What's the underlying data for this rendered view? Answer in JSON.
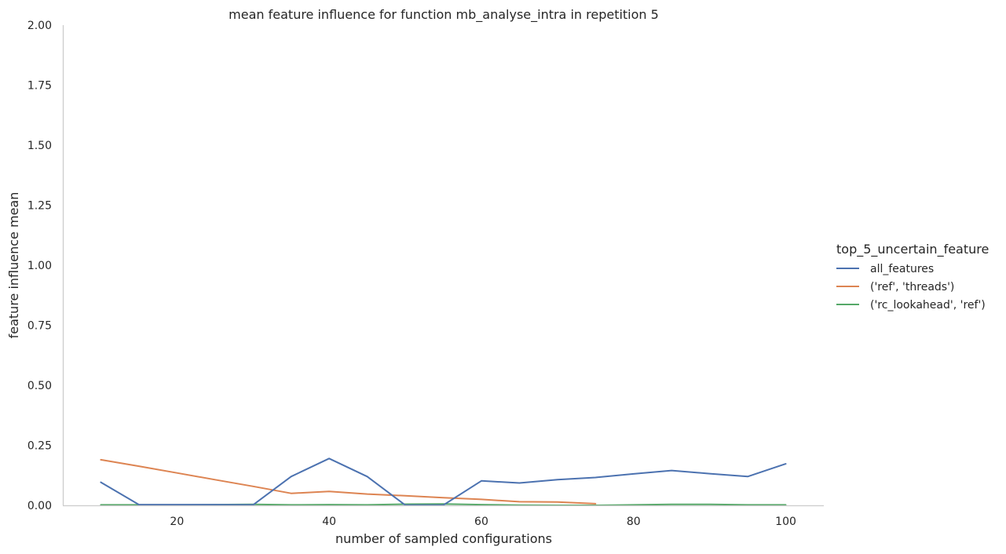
{
  "chart_data": {
    "type": "line",
    "title": "mean feature influence for function mb_analyse_intra in repetition 5",
    "xlabel": "number of sampled configurations",
    "ylabel": "feature influence mean",
    "xlim": [
      5,
      105
    ],
    "ylim": [
      0,
      2.0
    ],
    "xticks": [
      20,
      40,
      60,
      80,
      100
    ],
    "xtick_labels": [
      "20",
      "40",
      "60",
      "80",
      "100"
    ],
    "yticks": [
      0.0,
      0.25,
      0.5,
      0.75,
      1.0,
      1.25,
      1.5,
      1.75,
      2.0
    ],
    "ytick_labels": [
      "0.00",
      "0.25",
      "0.50",
      "0.75",
      "1.00",
      "1.25",
      "1.50",
      "1.75",
      "2.00"
    ],
    "grid": false,
    "legend_placement": "right",
    "legend_title": "top_5_uncertain_feature",
    "series": [
      {
        "name": "all_features",
        "color": "#4c72b0",
        "x": [
          10,
          15,
          20,
          25,
          30,
          35,
          40,
          45,
          50,
          55,
          60,
          65,
          70,
          75,
          80,
          85,
          90,
          95,
          100
        ],
        "y": [
          0.096,
          0.003,
          0.003,
          0.003,
          0.002,
          0.12,
          0.195,
          0.12,
          0.001,
          0.001,
          0.102,
          0.093,
          0.107,
          0.116,
          0.131,
          0.145,
          0.132,
          0.12,
          0.173
        ]
      },
      {
        "name": "('ref', 'threads')",
        "color": "#dd8452",
        "x": [
          10,
          15,
          20,
          25,
          30,
          35,
          40,
          45,
          50,
          55,
          60,
          65,
          70,
          75
        ],
        "y": [
          0.19,
          0.163,
          0.135,
          0.107,
          0.079,
          0.05,
          0.058,
          0.047,
          0.04,
          0.032,
          0.025,
          0.015,
          0.014,
          0.007
        ]
      },
      {
        "name": "('rc_lookahead', 'ref')",
        "color": "#55a868",
        "x": [
          10,
          15,
          20,
          25,
          30,
          35,
          40,
          45,
          50,
          55,
          60,
          65,
          70,
          75,
          80,
          85,
          90,
          95,
          100
        ],
        "y": [
          0.002,
          0.002,
          0.002,
          0.003,
          0.004,
          0.002,
          0.003,
          0.002,
          0.005,
          0.006,
          0.003,
          0.001,
          0.0,
          0.0,
          0.002,
          0.004,
          0.004,
          0.002,
          0.002
        ]
      }
    ]
  }
}
